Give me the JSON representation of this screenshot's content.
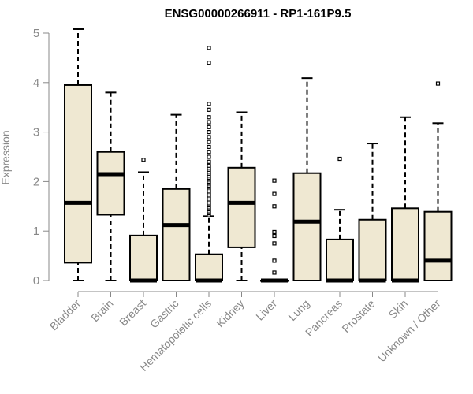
{
  "chart_data": {
    "type": "boxplot",
    "title": "ENSG00000266911 - RP1-161P9.5",
    "xlabel": "",
    "ylabel": "Expression",
    "ylim": [
      0,
      5
    ],
    "yticks": [
      0,
      1,
      2,
      3,
      4,
      5
    ],
    "grid": false,
    "legend": "none",
    "box_color": "#efe8d2",
    "categories": [
      "Bladder",
      "Brain",
      "Breast",
      "Gastric",
      "Hematopoietic cells",
      "Kidney",
      "Liver",
      "Lung",
      "Pancreas",
      "Prostate",
      "Skin",
      "Unknown / Other"
    ],
    "boxes": [
      {
        "min": 0.0,
        "q1": 0.36,
        "median": 1.57,
        "q3": 3.95,
        "max": 5.08,
        "outliers": []
      },
      {
        "min": 0.0,
        "q1": 1.33,
        "median": 2.15,
        "q3": 2.6,
        "max": 3.8,
        "outliers": []
      },
      {
        "min": 0.0,
        "q1": 0.0,
        "median": 0.0,
        "q3": 0.91,
        "max": 2.19,
        "outliers": [
          2.44
        ]
      },
      {
        "min": 0.0,
        "q1": 0.0,
        "median": 1.12,
        "q3": 1.85,
        "max": 3.35,
        "outliers": []
      },
      {
        "min": 0.0,
        "q1": 0.0,
        "median": 0.0,
        "q3": 0.53,
        "max": 1.3,
        "outliers": [
          1.32,
          1.36,
          1.4,
          1.44,
          1.48,
          1.52,
          1.56,
          1.6,
          1.64,
          1.68,
          1.72,
          1.76,
          1.8,
          1.84,
          1.88,
          1.92,
          1.96,
          2.0,
          2.04,
          2.08,
          2.12,
          2.16,
          2.2,
          2.24,
          2.28,
          2.32,
          2.4,
          2.5,
          2.6,
          2.7,
          2.8,
          2.9,
          3.0,
          3.1,
          3.2,
          3.3,
          3.45,
          3.57,
          4.4,
          4.7
        ]
      },
      {
        "min": 0.0,
        "q1": 0.67,
        "median": 1.57,
        "q3": 2.28,
        "max": 3.4,
        "outliers": []
      },
      {
        "min": 0.0,
        "q1": 0.0,
        "median": 0.0,
        "q3": 0.0,
        "max": 0.0,
        "outliers": [
          0.16,
          0.4,
          0.75,
          0.9,
          0.98,
          1.5,
          1.75,
          2.02
        ]
      },
      {
        "min": 0.0,
        "q1": 0.0,
        "median": 1.19,
        "q3": 2.17,
        "max": 4.09,
        "outliers": []
      },
      {
        "min": 0.0,
        "q1": 0.0,
        "median": 0.0,
        "q3": 0.83,
        "max": 1.43,
        "outliers": [
          2.46
        ]
      },
      {
        "min": 0.0,
        "q1": 0.0,
        "median": 0.0,
        "q3": 1.23,
        "max": 2.77,
        "outliers": []
      },
      {
        "min": 0.0,
        "q1": 0.0,
        "median": 0.0,
        "q3": 1.46,
        "max": 3.3,
        "outliers": []
      },
      {
        "min": 0.0,
        "q1": 0.0,
        "median": 0.4,
        "q3": 1.39,
        "max": 3.18,
        "outliers": [
          3.98
        ]
      }
    ]
  }
}
